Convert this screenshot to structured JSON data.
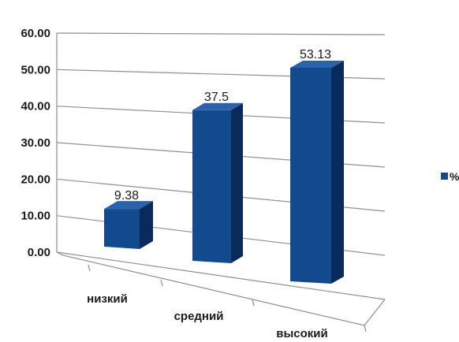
{
  "chart_data": {
    "type": "bar",
    "categories": [
      "низкий",
      "средний",
      "высокий"
    ],
    "series": [
      {
        "name": "%",
        "values": [
          9.38,
          37.5,
          53.13
        ]
      }
    ],
    "data_labels": [
      "9.38",
      "37.5",
      "53.13"
    ],
    "ytick_labels": [
      "0.00",
      "10.00",
      "20.00",
      "30.00",
      "40.00",
      "50.00",
      "60.00"
    ],
    "ylim": [
      0,
      60
    ],
    "title": "",
    "xlabel": "",
    "ylabel": "",
    "grid": true,
    "legend": "right",
    "style": "3d-perspective",
    "colors": {
      "bar_front": "#134a8e",
      "bar_side": "#0a2a5c",
      "bar_top": "#2a62ad",
      "grid": "#8f8f8f"
    }
  }
}
